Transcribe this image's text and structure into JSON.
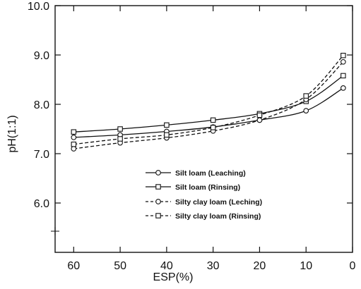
{
  "chart_data": {
    "type": "line",
    "title": "",
    "xlabel": "ESP(%)",
    "ylabel": "pH(1:1)",
    "xlim": [
      64,
      0
    ],
    "ylim": [
      5.0,
      10.0
    ],
    "x_reversed": true,
    "x_ticks": [
      60,
      50,
      40,
      30,
      20,
      10,
      0
    ],
    "y_ticks": [
      6.0,
      7.0,
      8.0,
      9.0,
      10.0
    ],
    "x_tick_labels": [
      "60",
      "50",
      "40",
      "30",
      "20",
      "10",
      "0"
    ],
    "y_tick_labels": [
      "6.0",
      "7.0",
      "8.0",
      "9.0",
      "10.0"
    ],
    "grid": false,
    "legend_position": "center-right",
    "x": [
      60,
      50,
      40,
      30,
      20,
      10,
      2
    ],
    "series": [
      {
        "name": "Silt loam (Leaching)",
        "marker": "circle",
        "style": "solid",
        "values": [
          7.33,
          7.38,
          7.45,
          7.54,
          7.68,
          7.87,
          8.33
        ]
      },
      {
        "name": "Silt loam (Rinsing)",
        "marker": "square",
        "style": "solid",
        "values": [
          7.44,
          7.5,
          7.58,
          7.68,
          7.81,
          8.06,
          8.58
        ]
      },
      {
        "name": "Silty clay loam (Leching)",
        "marker": "circle",
        "style": "dashed",
        "values": [
          7.1,
          7.22,
          7.32,
          7.46,
          7.68,
          8.1,
          8.86
        ]
      },
      {
        "name": "Silty clay loam (Rinsing)",
        "marker": "square",
        "style": "dashed",
        "values": [
          7.19,
          7.3,
          7.38,
          7.53,
          7.78,
          8.17,
          8.99
        ]
      }
    ]
  }
}
